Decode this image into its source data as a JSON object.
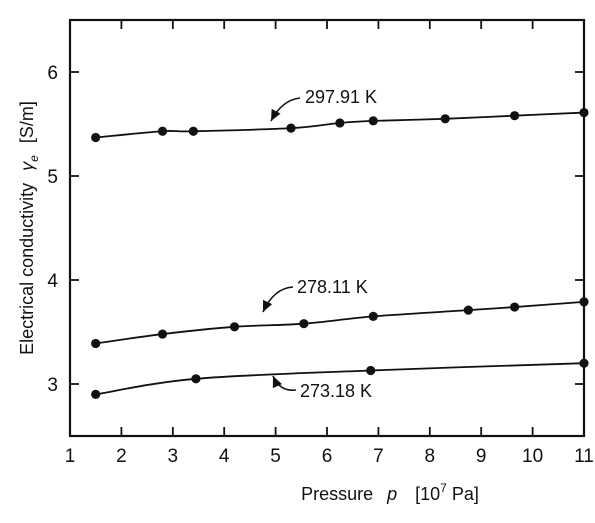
{
  "chart_data": {
    "type": "line",
    "xlabel": "Pressure",
    "xlabel_symbol": "p",
    "xlabel_unit": "[10",
    "xlabel_unit_exp": "7",
    "xlabel_unit_tail": " Pa]",
    "ylabel": "Electrical conductivity",
    "ylabel_symbol": "γ",
    "ylabel_symbol_sub": "e",
    "ylabel_unit": "[S/m]",
    "xlim": [
      1,
      11
    ],
    "ylim": [
      2.5,
      6.5
    ],
    "xticks": [
      1,
      2,
      3,
      4,
      5,
      6,
      7,
      8,
      9,
      10,
      11
    ],
    "xtick_labels": [
      "1",
      "2",
      "3",
      "4",
      "5",
      "6",
      "7",
      "8",
      "9",
      "10",
      "11"
    ],
    "yticks": [
      3,
      4,
      5,
      6
    ],
    "ytick_labels": [
      "3",
      "4",
      "5",
      "6"
    ],
    "grid": false,
    "legend": "none",
    "series": [
      {
        "name": "297.91 K",
        "points": [
          [
            1.5,
            5.37
          ],
          [
            2.8,
            5.43
          ],
          [
            3.4,
            5.43
          ],
          [
            5.3,
            5.46
          ],
          [
            6.25,
            5.51
          ],
          [
            6.9,
            5.53
          ],
          [
            8.3,
            5.55
          ],
          [
            9.65,
            5.58
          ],
          [
            11.0,
            5.61
          ]
        ]
      },
      {
        "name": "278.11 K",
        "points": [
          [
            1.5,
            3.39
          ],
          [
            2.8,
            3.48
          ],
          [
            4.2,
            3.55
          ],
          [
            5.55,
            3.58
          ],
          [
            6.9,
            3.65
          ],
          [
            8.75,
            3.71
          ],
          [
            9.65,
            3.74
          ],
          [
            11.0,
            3.79
          ]
        ]
      },
      {
        "name": "273.18 K",
        "points": [
          [
            1.5,
            2.9
          ],
          [
            3.45,
            3.05
          ],
          [
            6.85,
            3.13
          ],
          [
            11.0,
            3.2
          ]
        ]
      }
    ]
  }
}
